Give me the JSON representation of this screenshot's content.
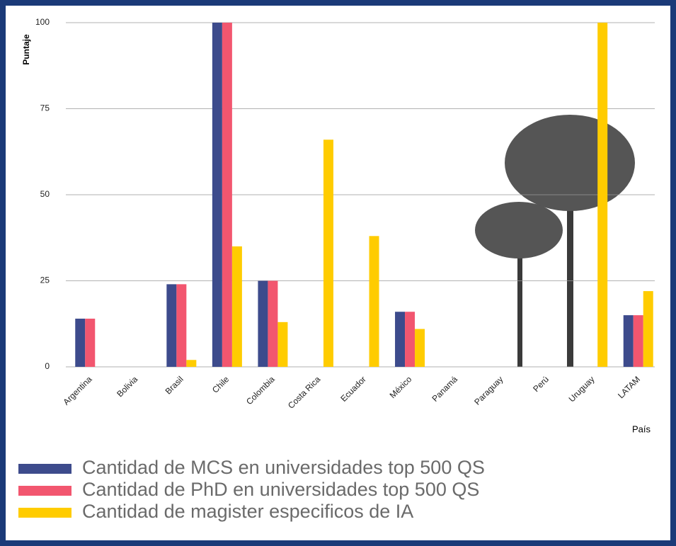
{
  "chart_data": {
    "type": "bar",
    "y_label": "Puntaje",
    "x_label": "País",
    "categories": [
      "Argentina",
      "Bolivia",
      "Brasil",
      "Chile",
      "Colombia",
      "Costa Rica",
      "Ecuador",
      "México",
      "Panamá",
      "Paraguay",
      "Perú",
      "Uruguay",
      "LATAM"
    ],
    "series": [
      {
        "name": "Cantidad de MCS en universidades top 500 QS",
        "color": "#3d4b8c",
        "values": [
          14,
          0,
          24,
          100,
          25,
          0,
          0,
          16,
          0,
          0,
          0,
          0,
          15
        ]
      },
      {
        "name": "Cantidad de PhD en universidades top 500 QS",
        "color": "#f2566f",
        "values": [
          14,
          0,
          24,
          100,
          25,
          0,
          0,
          16,
          0,
          0,
          0,
          0,
          15
        ]
      },
      {
        "name": "Cantidad de magister especificos de IA",
        "color": "#ffcc00",
        "values": [
          0,
          0,
          2,
          35,
          13,
          66,
          38,
          11,
          0,
          0,
          0,
          100,
          22
        ]
      }
    ],
    "ylim": [
      0,
      100
    ],
    "yticks": [
      0,
      25,
      50,
      75,
      100
    ],
    "grid": true
  }
}
